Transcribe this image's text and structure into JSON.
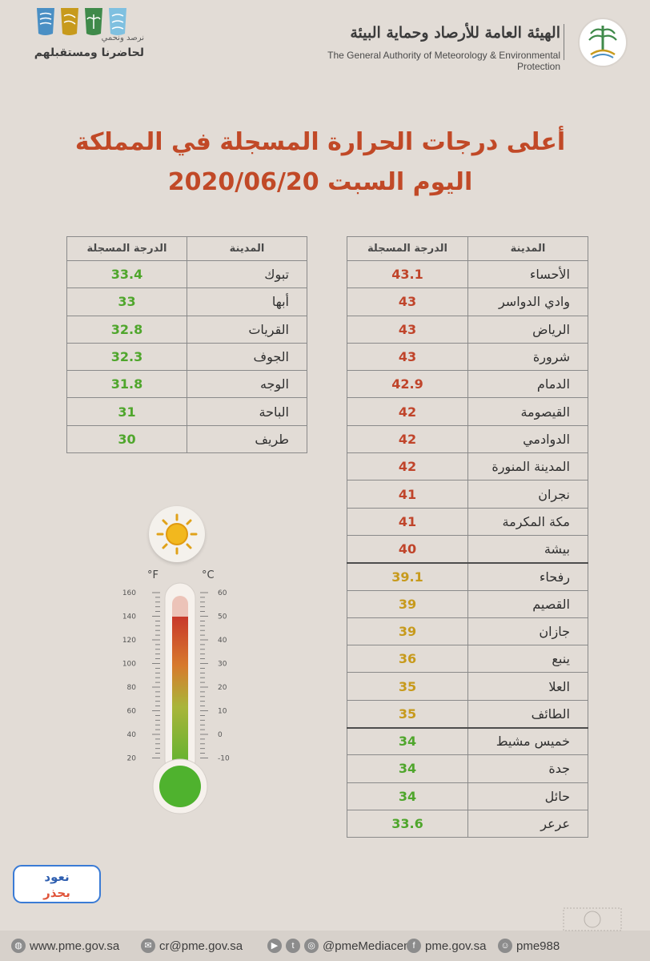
{
  "header": {
    "org_name_ar": "الهيئة العامة للأرصاد وحماية البيئة",
    "org_name_en": "The General Authority of Meteorology & Environmental Protection",
    "slogan_small": "نرصد ونحمي",
    "slogan_big": "لحاضرنا ومستقبلهم"
  },
  "title": {
    "line1": "أعلى درجات الحرارة المسجلة في المملكة",
    "line2": "اليوم السبت 2020/06/20"
  },
  "columns": {
    "city": "المدينة",
    "temp": "الدرجة المسجلة"
  },
  "colors": {
    "red": "#c0442a",
    "orange": "#c79a1c",
    "green": "#4fa62c",
    "title": "#c14927"
  },
  "right_table": [
    {
      "city": "الأحساء",
      "temp": "43.1",
      "level": "red"
    },
    {
      "city": "وادي الدواسر",
      "temp": "43",
      "level": "red"
    },
    {
      "city": "الرياض",
      "temp": "43",
      "level": "red"
    },
    {
      "city": "شرورة",
      "temp": "43",
      "level": "red"
    },
    {
      "city": "الدمام",
      "temp": "42.9",
      "level": "red"
    },
    {
      "city": "القيصومة",
      "temp": "42",
      "level": "red"
    },
    {
      "city": "الدوادمي",
      "temp": "42",
      "level": "red"
    },
    {
      "city": "المدينة المنورة",
      "temp": "42",
      "level": "red"
    },
    {
      "city": "نجران",
      "temp": "41",
      "level": "red"
    },
    {
      "city": "مكة المكرمة",
      "temp": "41",
      "level": "red"
    },
    {
      "city": "بيشة",
      "temp": "40",
      "level": "red"
    },
    {
      "city": "رفحاء",
      "temp": "39.1",
      "level": "orange"
    },
    {
      "city": "القصيم",
      "temp": "39",
      "level": "orange"
    },
    {
      "city": "جازان",
      "temp": "39",
      "level": "orange"
    },
    {
      "city": "ينبع",
      "temp": "36",
      "level": "orange"
    },
    {
      "city": "العلا",
      "temp": "35",
      "level": "orange"
    },
    {
      "city": "الطائف",
      "temp": "35",
      "level": "orange"
    },
    {
      "city": "خميس مشيط",
      "temp": "34",
      "level": "green"
    },
    {
      "city": "جدة",
      "temp": "34",
      "level": "green"
    },
    {
      "city": "حائل",
      "temp": "34",
      "level": "green"
    },
    {
      "city": "عرعر",
      "temp": "33.6",
      "level": "green"
    }
  ],
  "left_table": [
    {
      "city": "تبوك",
      "temp": "33.4",
      "level": "green"
    },
    {
      "city": "أبها",
      "temp": "33",
      "level": "green"
    },
    {
      "city": "القريات",
      "temp": "32.8",
      "level": "green"
    },
    {
      "city": "الجوف",
      "temp": "32.3",
      "level": "green"
    },
    {
      "city": "الوجه",
      "temp": "31.8",
      "level": "green"
    },
    {
      "city": "الباحة",
      "temp": "31",
      "level": "green"
    },
    {
      "city": "طريف",
      "temp": "30",
      "level": "green"
    }
  ],
  "thermometer": {
    "f_label": "°F",
    "c_label": "°C",
    "f_ticks": [
      "160",
      "140",
      "120",
      "100",
      "80",
      "60",
      "40",
      "20"
    ],
    "c_ticks": [
      "60",
      "50",
      "40",
      "30",
      "20",
      "10",
      "0",
      "-10"
    ]
  },
  "badge": {
    "text_top": "نعود",
    "text_bottom": "بحذر"
  },
  "footer": {
    "website": "www.pme.gov.sa",
    "email": "cr@pme.gov.sa",
    "social": "@pmeMediacen",
    "facebook": "pme.gov.sa",
    "phone": "pme988"
  }
}
